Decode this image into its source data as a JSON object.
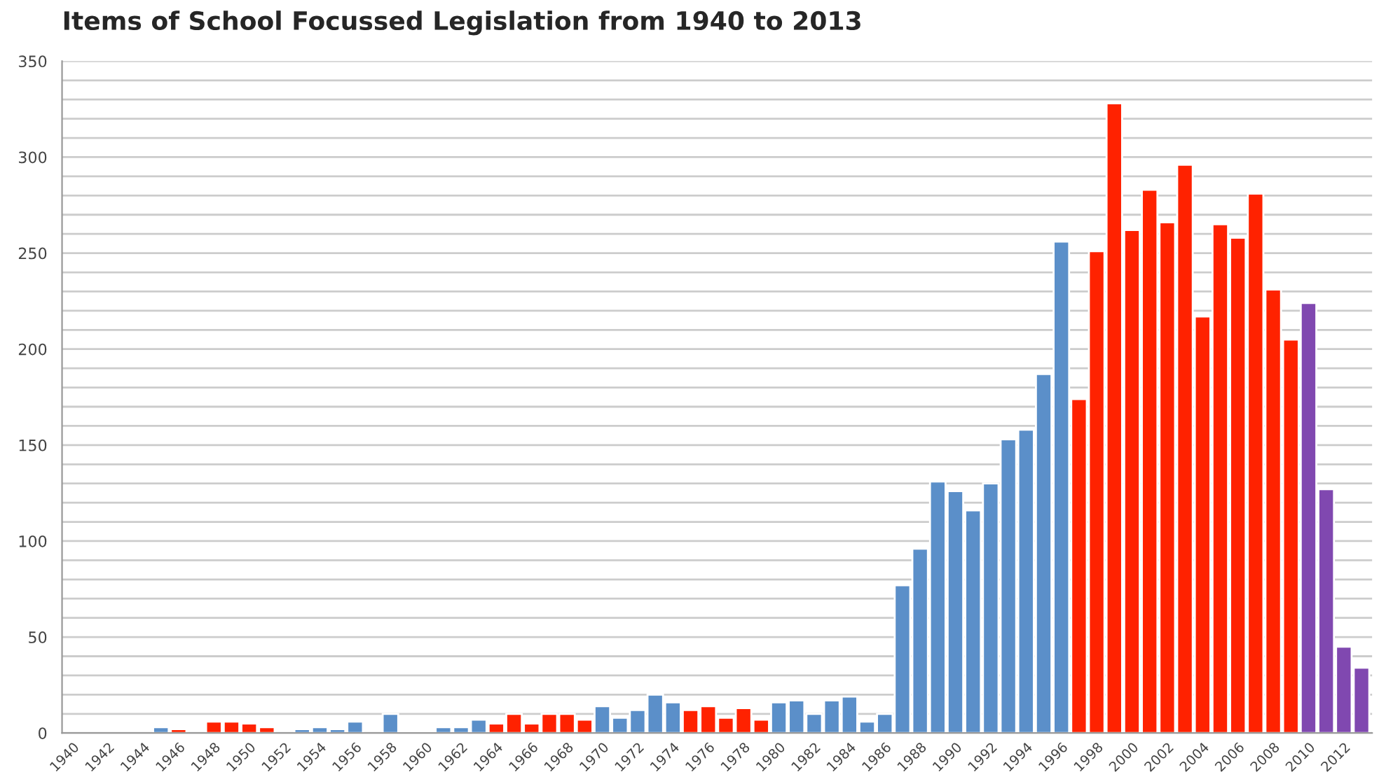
{
  "chart_data": {
    "type": "bar",
    "title": "Items of School Focussed Legislation from 1940 to 2013",
    "categories": [
      "1940",
      null,
      "1942",
      null,
      "1944",
      null,
      "1946",
      null,
      "1948",
      null,
      "1950",
      null,
      "1952",
      null,
      "1954",
      null,
      "1956",
      null,
      "1958",
      null,
      "1960",
      null,
      "1962",
      null,
      "1964",
      null,
      "1966",
      null,
      "1968",
      null,
      "1970",
      null,
      "1972",
      null,
      "1974",
      null,
      "1976",
      null,
      "1978",
      null,
      "1980",
      null,
      "1982",
      null,
      "1984",
      null,
      "1986",
      null,
      "1988",
      null,
      "1990",
      null,
      "1992",
      null,
      "1994",
      null,
      "1996",
      null,
      "1998",
      null,
      "2000",
      null,
      "2002",
      null,
      "2004",
      null,
      "2006",
      null,
      "2008",
      null,
      "2010",
      null,
      "2012",
      null
    ],
    "values": [
      null,
      null,
      null,
      null,
      null,
      3,
      2,
      null,
      6,
      6,
      5,
      3,
      null,
      2,
      3,
      2,
      6,
      null,
      10,
      1,
      1,
      3,
      3,
      7,
      5,
      10,
      5,
      10,
      10,
      7,
      14,
      8,
      12,
      20,
      16,
      12,
      14,
      8,
      13,
      7,
      16,
      17,
      10,
      17,
      19,
      6,
      10,
      77,
      96,
      131,
      126,
      116,
      130,
      153,
      158,
      187,
      256,
      174,
      251,
      328,
      262,
      283,
      266,
      296,
      217,
      265,
      258,
      281,
      231,
      205,
      224,
      127,
      45,
      34
    ],
    "colors": [
      "#5b8fc9",
      "#5b8fc9",
      "#5b8fc9",
      "#5b8fc9",
      "#5b8fc9",
      "#5b8fc9",
      "#ff2200",
      "#ff2200",
      "#ff2200",
      "#ff2200",
      "#ff2200",
      "#ff2200",
      "#5b8fc9",
      "#5b8fc9",
      "#5b8fc9",
      "#5b8fc9",
      "#5b8fc9",
      "#5b8fc9",
      "#5b8fc9",
      "#5b8fc9",
      "#5b8fc9",
      "#5b8fc9",
      "#5b8fc9",
      "#5b8fc9",
      "#ff2200",
      "#ff2200",
      "#ff2200",
      "#ff2200",
      "#ff2200",
      "#ff2200",
      "#5b8fc9",
      "#5b8fc9",
      "#5b8fc9",
      "#5b8fc9",
      "#5b8fc9",
      "#ff2200",
      "#ff2200",
      "#ff2200",
      "#ff2200",
      "#ff2200",
      "#5b8fc9",
      "#5b8fc9",
      "#5b8fc9",
      "#5b8fc9",
      "#5b8fc9",
      "#5b8fc9",
      "#5b8fc9",
      "#5b8fc9",
      "#5b8fc9",
      "#5b8fc9",
      "#5b8fc9",
      "#5b8fc9",
      "#5b8fc9",
      "#5b8fc9",
      "#5b8fc9",
      "#5b8fc9",
      "#5b8fc9",
      "#ff2200",
      "#ff2200",
      "#ff2200",
      "#ff2200",
      "#ff2200",
      "#ff2200",
      "#ff2200",
      "#ff2200",
      "#ff2200",
      "#ff2200",
      "#ff2200",
      "#ff2200",
      "#ff2200",
      "#8048b0",
      "#8048b0",
      "#8048b0",
      "#8048b0"
    ],
    "ylim": [
      0,
      350
    ],
    "yticks": [
      0,
      {
        "value": 10,
        "label": null
      },
      {
        "value": 20,
        "label": null
      },
      {
        "value": 30,
        "label": null
      },
      {
        "value": 40,
        "label": null
      },
      50,
      {
        "value": 60,
        "label": null
      },
      {
        "value": 70,
        "label": null
      },
      {
        "value": 80,
        "label": null
      },
      {
        "value": 90,
        "label": null
      },
      100,
      {
        "value": 110,
        "label": null
      },
      {
        "value": 120,
        "label": null
      },
      {
        "value": 130,
        "label": null
      },
      {
        "value": 140,
        "label": null
      },
      150,
      {
        "value": 160,
        "label": null
      },
      {
        "value": 170,
        "label": null
      },
      {
        "value": 180,
        "label": null
      },
      {
        "value": 190,
        "label": null
      },
      200,
      {
        "value": 210,
        "label": null
      },
      {
        "value": 220,
        "label": null
      },
      {
        "value": 230,
        "label": null
      },
      {
        "value": 240,
        "label": null
      },
      250,
      {
        "value": 260,
        "label": null
      },
      {
        "value": 270,
        "label": null
      },
      {
        "value": 280,
        "label": null
      },
      {
        "value": 290,
        "label": null
      },
      300,
      {
        "value": 310,
        "label": null
      },
      {
        "value": 320,
        "label": null
      },
      {
        "value": 330,
        "label": null
      },
      {
        "value": 340,
        "label": null
      },
      350
    ],
    "grid": "y"
  }
}
